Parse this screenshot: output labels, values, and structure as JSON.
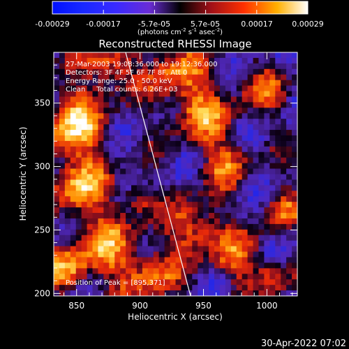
{
  "colorbar": {
    "ticks": [
      "-0.00029",
      "-0.00017",
      "-5.7e-05",
      "5.7e-05",
      "0.00017",
      "0.00029"
    ],
    "units_main": "(photons cm",
    "units_exp1": "-2",
    "units_mid": " s",
    "units_exp2": "-1",
    "units_tail": " asec",
    "units_exp3": "-2",
    "units_close": ")"
  },
  "chart_data": {
    "type": "heatmap",
    "title": "Reconstructed RHESSI Image",
    "xlabel": "Heliocentric X (arcsec)",
    "ylabel": "Heliocentric Y (arcsec)",
    "xlim": [
      832,
      1024
    ],
    "ylim": [
      198,
      390
    ],
    "xticks": [
      "850",
      "900",
      "950",
      "1000"
    ],
    "xtick_values": [
      850,
      900,
      950,
      1000
    ],
    "yticks": [
      "200",
      "250",
      "300",
      "350"
    ],
    "ytick_values": [
      200,
      250,
      300,
      350
    ],
    "annotations": [
      "27-Mar-2003 19:08:36.000 to 19:12:36.000",
      "Detectors: 3F 4F 5F 6F 7F 8F, Att 0",
      "Energy Range: 25.0 - 50.0 keV",
      "Clean     Total counts: 6.26E+03"
    ],
    "peak_label": "Position of Peak = [895,371]",
    "colorbar_range": [
      -0.00029,
      0.00029
    ]
  },
  "timestamp": "30-Apr-2022 07:02"
}
